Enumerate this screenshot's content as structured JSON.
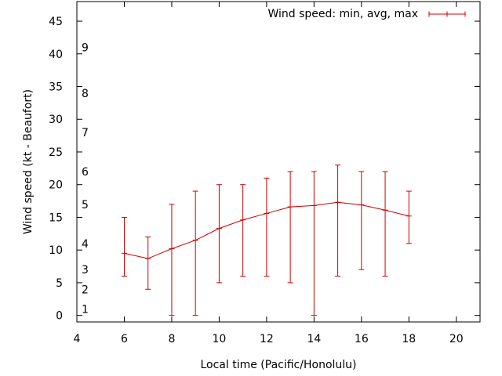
{
  "chart_data": {
    "type": "line",
    "title": "",
    "xlabel": "Local time (Pacific/Honolulu)",
    "ylabel": "Wind speed (kt - Beaufort)",
    "xlim": [
      4,
      21
    ],
    "ylim": [
      -1,
      48
    ],
    "x_ticks": [
      "4",
      "6",
      "8",
      "10",
      "12",
      "14",
      "16",
      "18",
      "20"
    ],
    "y_ticks": [
      "0",
      "5",
      "10",
      "15",
      "20",
      "25",
      "30",
      "35",
      "40",
      "45"
    ],
    "beaufort_scale": [
      {
        "label": "1",
        "at": 1
      },
      {
        "label": "2",
        "at": 4
      },
      {
        "label": "3",
        "at": 7
      },
      {
        "label": "4",
        "at": 11
      },
      {
        "label": "5",
        "at": 17
      },
      {
        "label": "6",
        "at": 22
      },
      {
        "label": "7",
        "at": 28
      },
      {
        "label": "8",
        "at": 34
      },
      {
        "label": "9",
        "at": 41
      }
    ],
    "legend_position": "top-right",
    "series": [
      {
        "name": "Wind speed: min, avg, max",
        "color": "#cc0000",
        "x": [
          6,
          7,
          8,
          9,
          10,
          11,
          12,
          13,
          14,
          15,
          16,
          17,
          18
        ],
        "avg": [
          9.5,
          8.7,
          10.2,
          11.5,
          13.3,
          14.6,
          15.6,
          16.6,
          16.8,
          17.3,
          16.9,
          16.1,
          15.2
        ],
        "min": [
          6,
          4,
          0,
          0,
          5,
          6,
          6,
          5,
          0,
          6,
          7,
          6,
          11
        ],
        "max": [
          15,
          12,
          17,
          19,
          20,
          20,
          21,
          22,
          22,
          23,
          22,
          22,
          19
        ]
      }
    ]
  }
}
